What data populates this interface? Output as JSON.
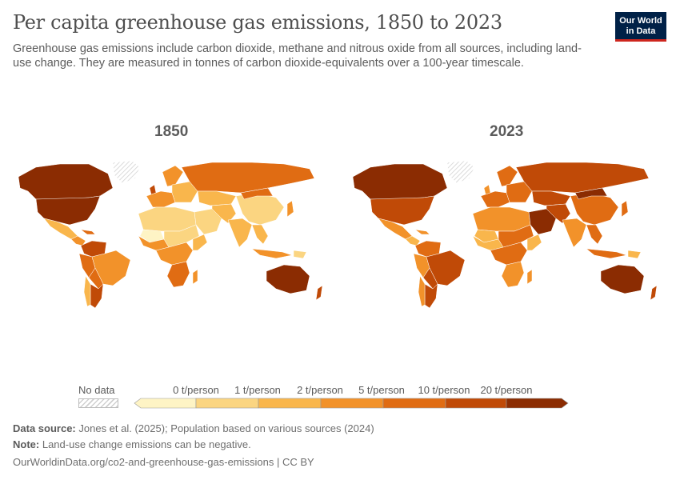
{
  "header": {
    "title": "Per capita greenhouse gas emissions, 1850 to 2023",
    "subtitle": "Greenhouse gas emissions include carbon dioxide, methane and nitrous oxide from all sources, including land-use change. They are measured in tonnes of carbon dioxide-equivalents over a 100-year timescale.",
    "logo_line1": "Our World",
    "logo_line2": "in Data"
  },
  "maps": {
    "left_year": "1850",
    "right_year": "2023"
  },
  "legend": {
    "no_data_label": "No data",
    "bins": [
      "0 t/person",
      "1 t/person",
      "2 t/person",
      "5 t/person",
      "10 t/person",
      "20 t/person"
    ],
    "colors": [
      "#fef4c5",
      "#fbd581",
      "#f9b64c",
      "#f2922a",
      "#e06c13",
      "#c04a07",
      "#8b2c02"
    ],
    "no_data_color": "#d8d8d8"
  },
  "footer": {
    "source_label": "Data source:",
    "source_text": "Jones et al. (2025); Population based on various sources (2024)",
    "note_label": "Note:",
    "note_text": "Land-use change emissions can be negative.",
    "url": "OurWorldinData.org/co2-and-greenhouse-gas-emissions | CC BY"
  }
}
